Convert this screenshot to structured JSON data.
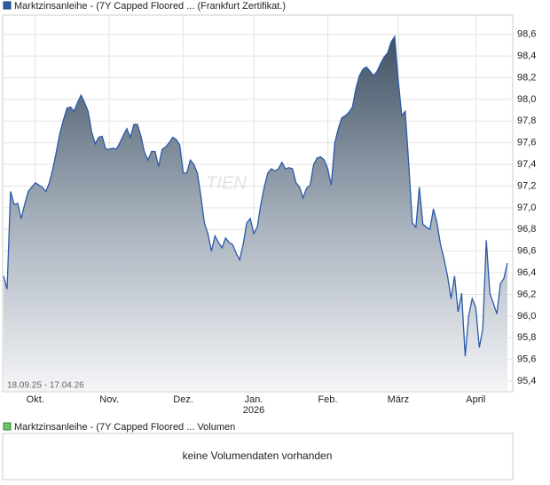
{
  "chart_data": [
    {
      "type": "area",
      "series": [
        {
          "name": "Marktzinsanleihe - (7Y Capped Floored ... (Frankfurt Zertifikat.)",
          "color": "#2a5aa8",
          "values": [
            96.37,
            96.25,
            97.15,
            97.03,
            97.04,
            96.9,
            97.03,
            97.15,
            97.19,
            97.23,
            97.21,
            97.19,
            97.15,
            97.23,
            97.36,
            97.52,
            97.69,
            97.81,
            97.92,
            97.93,
            97.89,
            97.97,
            98.04,
            97.97,
            97.89,
            97.7,
            97.59,
            97.65,
            97.66,
            97.54,
            97.54,
            97.55,
            97.54,
            97.6,
            97.67,
            97.73,
            97.65,
            97.77,
            97.77,
            97.66,
            97.51,
            97.44,
            97.52,
            97.52,
            97.38,
            97.54,
            97.56,
            97.6,
            97.65,
            97.63,
            97.58,
            97.32,
            97.32,
            97.44,
            97.4,
            97.32,
            97.11,
            96.86,
            96.76,
            96.6,
            96.74,
            96.68,
            96.63,
            96.72,
            96.68,
            96.66,
            96.58,
            96.52,
            96.66,
            96.86,
            96.9,
            96.76,
            96.82,
            97.03,
            97.19,
            97.32,
            97.36,
            97.34,
            97.36,
            97.42,
            97.36,
            97.37,
            97.36,
            97.23,
            97.19,
            97.09,
            97.18,
            97.21,
            97.4,
            97.46,
            97.47,
            97.44,
            97.36,
            97.21,
            97.6,
            97.73,
            97.83,
            97.85,
            97.88,
            97.93,
            98.1,
            98.22,
            98.28,
            98.3,
            98.26,
            98.22,
            98.26,
            98.33,
            98.39,
            98.43,
            98.53,
            98.58,
            98.18,
            97.85,
            97.89,
            97.4,
            96.86,
            96.82,
            97.19,
            96.85,
            96.82,
            96.8,
            96.99,
            96.86,
            96.66,
            96.53,
            96.37,
            96.16,
            96.37,
            96.04,
            96.21,
            95.63,
            96.0,
            96.16,
            96.08,
            95.71,
            95.88,
            96.7,
            96.21,
            96.12,
            96.02,
            96.3,
            96.35,
            96.49
          ]
        }
      ],
      "xlim": [
        0,
        144
      ],
      "xticks": [
        {
          "value": 9,
          "label": "Okt."
        },
        {
          "value": 30,
          "label": "Nov."
        },
        {
          "value": 51,
          "label": "Dez."
        },
        {
          "value": 71,
          "label": "Jan.",
          "sublabel": "2026"
        },
        {
          "value": 92,
          "label": "Feb."
        },
        {
          "value": 112,
          "label": "März"
        },
        {
          "value": 134,
          "label": "April"
        }
      ],
      "ylim": [
        95.31,
        98.77
      ],
      "yticks": [
        {
          "value": 95.4,
          "label": "95,4"
        },
        {
          "value": 95.6,
          "label": "95,6"
        },
        {
          "value": 95.8,
          "label": "95,8"
        },
        {
          "value": 96.0,
          "label": "96,0"
        },
        {
          "value": 96.2,
          "label": "96,2"
        },
        {
          "value": 96.4,
          "label": "96,4"
        },
        {
          "value": 96.6,
          "label": "96,6"
        },
        {
          "value": 96.8,
          "label": "96,8"
        },
        {
          "value": 97.0,
          "label": "97,0"
        },
        {
          "value": 97.2,
          "label": "97,2"
        },
        {
          "value": 97.4,
          "label": "97,4"
        },
        {
          "value": 97.6,
          "label": "97,6"
        },
        {
          "value": 97.8,
          "label": "97,8"
        },
        {
          "value": 98.0,
          "label": "98,0"
        },
        {
          "value": 98.2,
          "label": "98,2"
        },
        {
          "value": 98.4,
          "label": "98,4"
        },
        {
          "value": 98.6,
          "label": "98,6"
        }
      ],
      "grid": true,
      "range_label": "18.09.25 - 17.04.26",
      "watermark": "TIEN"
    },
    {
      "type": "volume",
      "series": [
        {
          "name": "Marktzinsanleihe - (7Y Capped Floored ... Volumen",
          "color": "#6cc46c"
        }
      ],
      "message": "keine Volumendaten vorhanden"
    }
  ]
}
